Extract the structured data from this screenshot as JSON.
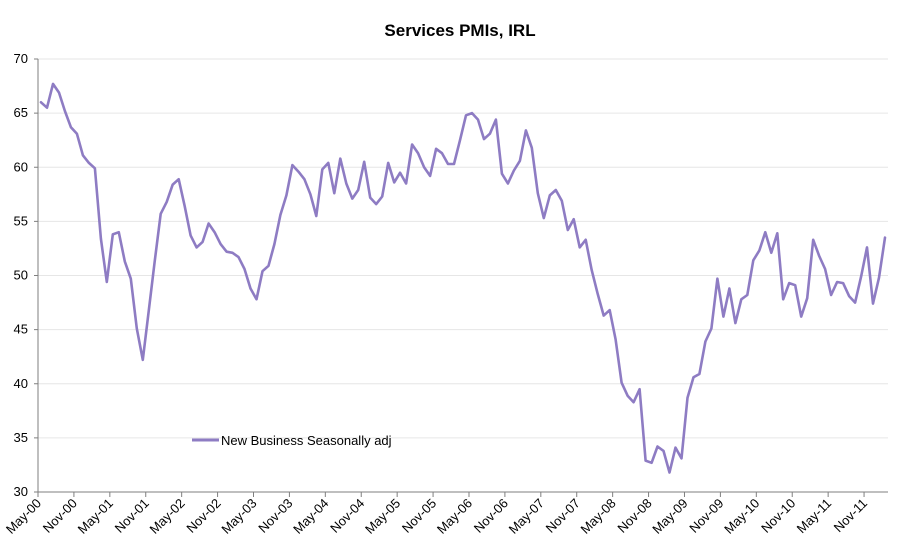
{
  "chart_data": {
    "type": "line",
    "title": "Services PMIs, IRL",
    "xlabel": "",
    "ylabel": "",
    "ylim": [
      30,
      70
    ],
    "y_ticks": [
      30,
      35,
      40,
      45,
      50,
      55,
      60,
      65,
      70
    ],
    "grid": true,
    "legend_position": "lower-left",
    "x_tick_labels": [
      "May-00",
      "Nov-00",
      "May-01",
      "Nov-01",
      "May-02",
      "Nov-02",
      "May-03",
      "Nov-03",
      "May-04",
      "Nov-04",
      "May-05",
      "Nov-05",
      "May-06",
      "Nov-06",
      "May-07",
      "Nov-07",
      "May-08",
      "Nov-08",
      "May-09",
      "Nov-09",
      "May-10",
      "Nov-10",
      "May-11",
      "Nov-11"
    ],
    "series": [
      {
        "name": "New Business Seasonally adj",
        "color": "#8e7cc3",
        "start": "May-00",
        "values": [
          66.0,
          65.5,
          67.7,
          66.9,
          65.2,
          63.7,
          63.1,
          61.1,
          60.4,
          59.9,
          53.4,
          49.4,
          53.8,
          54.0,
          51.3,
          49.7,
          45.1,
          42.2,
          46.7,
          51.3,
          55.7,
          56.8,
          58.4,
          58.9,
          56.4,
          53.7,
          52.6,
          53.1,
          54.8,
          54.0,
          52.9,
          52.2,
          52.1,
          51.7,
          50.6,
          48.8,
          47.8,
          50.4,
          50.9,
          52.9,
          55.6,
          57.4,
          60.2,
          59.6,
          58.9,
          57.5,
          55.5,
          59.8,
          60.4,
          57.6,
          60.8,
          58.5,
          57.1,
          57.9,
          60.5,
          57.2,
          56.6,
          57.3,
          60.4,
          58.6,
          59.5,
          58.5,
          62.1,
          61.3,
          60.0,
          59.2,
          61.7,
          61.3,
          60.3,
          60.3,
          62.5,
          64.8,
          65.0,
          64.4,
          62.6,
          63.1,
          64.4,
          59.4,
          58.5,
          59.7,
          60.6,
          63.4,
          61.8,
          57.6,
          55.3,
          57.4,
          57.9,
          56.9,
          54.2,
          55.2,
          52.6,
          53.3,
          50.5,
          48.3,
          46.3,
          46.8,
          44.1,
          40.1,
          38.9,
          38.3,
          39.5,
          32.9,
          32.7,
          34.2,
          33.8,
          31.8,
          34.1,
          33.1,
          38.7,
          40.6,
          40.9,
          43.9,
          45.1,
          49.7,
          46.2,
          48.8,
          45.6,
          47.8,
          48.2,
          51.4,
          52.3,
          54.0,
          52.1,
          53.9,
          47.8,
          49.3,
          49.1,
          46.2,
          47.9,
          53.3,
          51.8,
          50.6,
          48.2,
          49.4,
          49.3,
          48.1,
          47.5,
          49.9,
          52.6,
          47.4,
          49.8,
          53.5
        ]
      }
    ]
  }
}
